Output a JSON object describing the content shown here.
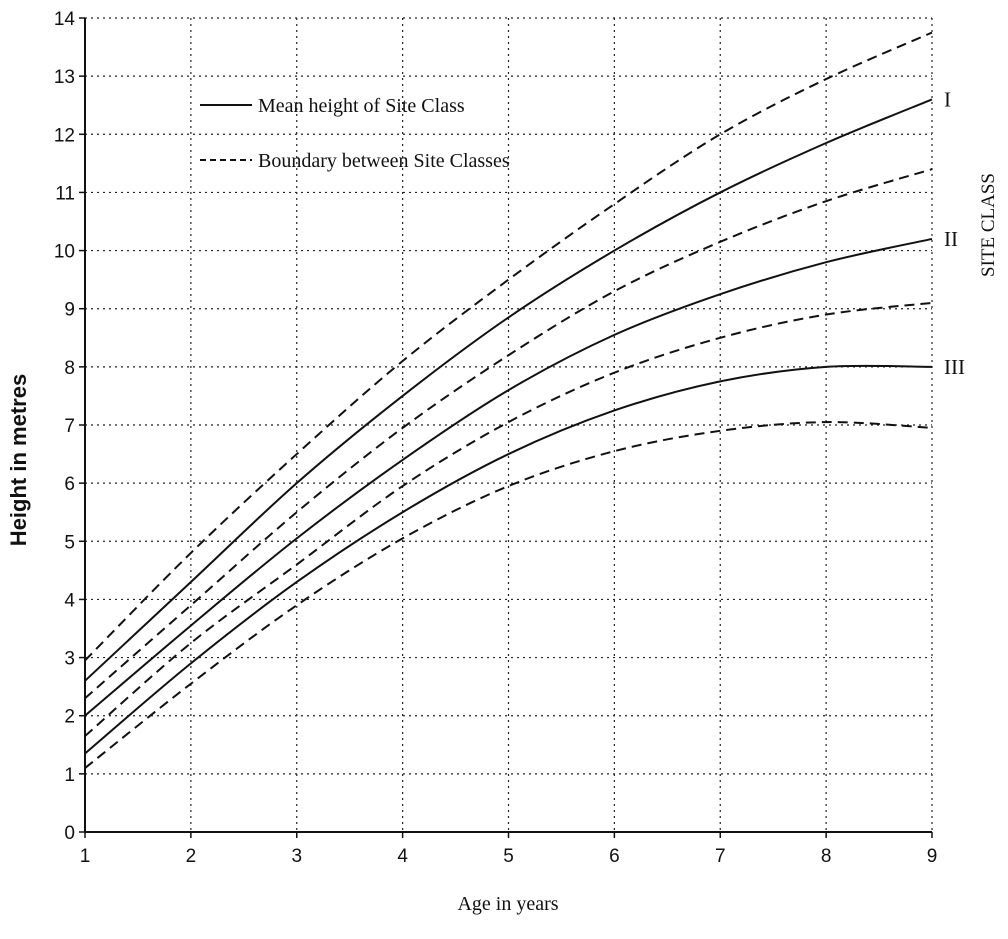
{
  "chart_data": {
    "type": "line",
    "xlabel": "Age in years",
    "ylabel": "Height in metres",
    "right_label": "SITE CLASS",
    "xlim": [
      1,
      9
    ],
    "ylim": [
      0,
      14
    ],
    "x_ticks": [
      "1",
      "2",
      "3",
      "4",
      "5",
      "6",
      "7",
      "8",
      "9"
    ],
    "y_ticks": [
      "0",
      "1",
      "2",
      "3",
      "4",
      "5",
      "6",
      "7",
      "8",
      "9",
      "10",
      "11",
      "12",
      "13",
      "14"
    ],
    "grid": true,
    "legend": {
      "position": "top-left",
      "entries": [
        {
          "label": "Mean height of Site Class",
          "style": "solid"
        },
        {
          "label": "Boundary between Site Classes",
          "style": "dashed"
        }
      ]
    },
    "x": [
      1,
      2,
      3,
      4,
      5,
      6,
      7,
      8,
      9
    ],
    "series": [
      {
        "style": "dashed",
        "values": [
          2.95,
          4.8,
          6.5,
          8.1,
          9.5,
          10.8,
          12.0,
          12.95,
          13.75
        ]
      },
      {
        "name": "I",
        "style": "solid",
        "values": [
          2.6,
          4.3,
          6.0,
          7.5,
          8.85,
          10.0,
          11.0,
          11.85,
          12.6
        ]
      },
      {
        "style": "dashed",
        "values": [
          2.3,
          3.9,
          5.5,
          6.95,
          8.2,
          9.3,
          10.15,
          10.85,
          11.4
        ]
      },
      {
        "name": "II",
        "style": "solid",
        "values": [
          2.0,
          3.55,
          5.05,
          6.4,
          7.6,
          8.55,
          9.25,
          9.8,
          10.2
        ]
      },
      {
        "style": "dashed",
        "values": [
          1.65,
          3.25,
          4.6,
          5.95,
          7.05,
          7.9,
          8.5,
          8.9,
          9.1
        ]
      },
      {
        "name": "III",
        "style": "solid",
        "values": [
          1.35,
          2.9,
          4.3,
          5.5,
          6.5,
          7.25,
          7.75,
          8.0,
          8.0
        ]
      },
      {
        "style": "dashed",
        "values": [
          1.1,
          2.55,
          3.9,
          5.05,
          5.95,
          6.55,
          6.9,
          7.05,
          6.95
        ]
      }
    ]
  }
}
